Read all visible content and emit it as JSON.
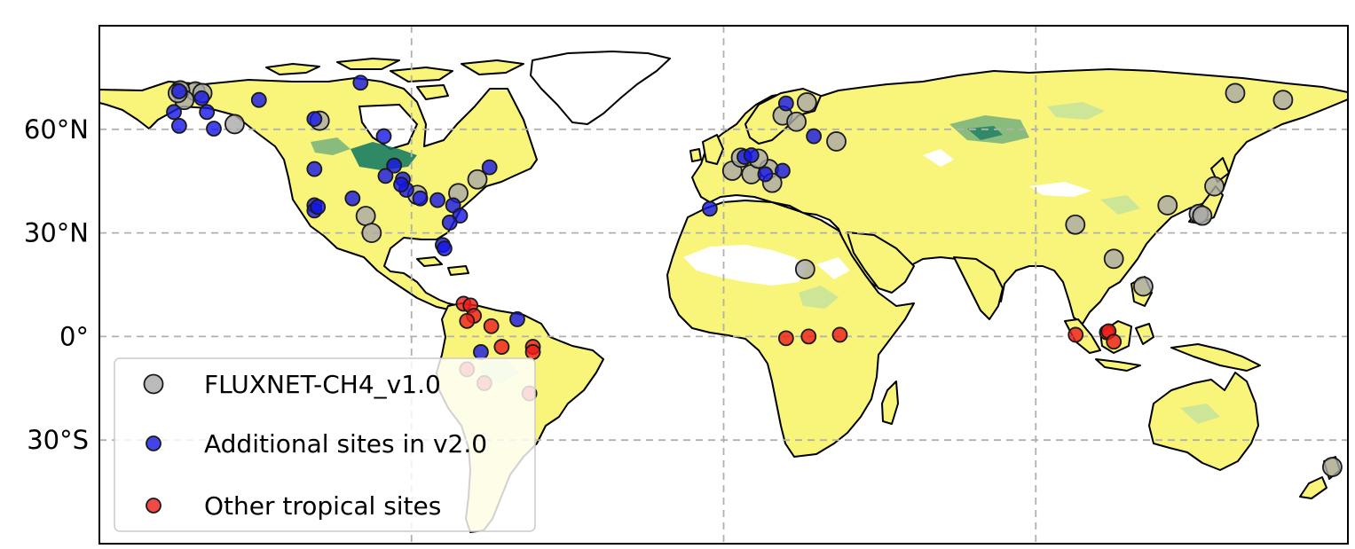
{
  "chart_data": {
    "type": "scatter",
    "title": "",
    "projection": "plate-carree",
    "xlim": [
      -180,
      180
    ],
    "ylim": [
      -60,
      90
    ],
    "grid": true,
    "grid_style": "dashed",
    "legend_placement": "lower-left",
    "y_ticks": [
      {
        "value": 60,
        "label": "60°N"
      },
      {
        "value": 30,
        "label": "30°N"
      },
      {
        "value": 0,
        "label": "0°"
      },
      {
        "value": -30,
        "label": "30°S"
      }
    ],
    "x_gridlines": [
      -90,
      0,
      90
    ],
    "background_field_colors": [
      "#f8f57a",
      "#c8e39a",
      "#5aa37f",
      "#0a7560"
    ],
    "series": [
      {
        "name": "FLUXNET-CH4_v1.0",
        "color": "#a9a9a9",
        "points": [
          {
            "lon": -152.3,
            "lat": 71.0
          },
          {
            "lon": -156.7,
            "lat": 71.3
          },
          {
            "lon": -155.5,
            "lat": 68.5
          },
          {
            "lon": -150.3,
            "lat": 70.5
          },
          {
            "lon": -157.4,
            "lat": 70.5
          },
          {
            "lon": -141.0,
            "lat": 61.5
          },
          {
            "lon": -116.5,
            "lat": 62.5
          },
          {
            "lon": -103.2,
            "lat": 34.9
          },
          {
            "lon": -88.3,
            "lat": 41.0
          },
          {
            "lon": -101.5,
            "lat": 30.0
          },
          {
            "lon": -76.5,
            "lat": 41.5
          },
          {
            "lon": -71.0,
            "lat": 45.5
          },
          {
            "lon": 2.5,
            "lat": 48.0
          },
          {
            "lon": 8.0,
            "lat": 47.0
          },
          {
            "lon": 13.0,
            "lat": 48.5
          },
          {
            "lon": 10.0,
            "lat": 51.5
          },
          {
            "lon": 5.0,
            "lat": 51.8
          },
          {
            "lon": 14.0,
            "lat": 44.5
          },
          {
            "lon": 17.0,
            "lat": 64.0
          },
          {
            "lon": 24.0,
            "lat": 67.8
          },
          {
            "lon": 21.0,
            "lat": 62.2
          },
          {
            "lon": 32.5,
            "lat": 56.5
          },
          {
            "lon": 23.5,
            "lat": 19.5
          },
          {
            "lon": 101.4,
            "lat": 32.4
          },
          {
            "lon": 112.5,
            "lat": 22.5
          },
          {
            "lon": 121.0,
            "lat": 14.5
          },
          {
            "lon": 128.0,
            "lat": 38.0
          },
          {
            "lon": 137.0,
            "lat": 35.5
          },
          {
            "lon": 141.5,
            "lat": 43.5
          },
          {
            "lon": 138.0,
            "lat": 35.0
          },
          {
            "lon": 147.5,
            "lat": 70.5
          },
          {
            "lon": 161.3,
            "lat": 68.5
          },
          {
            "lon": 175.5,
            "lat": -37.8
          }
        ]
      },
      {
        "name": "Additional sites in v2.0",
        "color": "#1515e6",
        "points": [
          {
            "lon": -157.0,
            "lat": 71.0
          },
          {
            "lon": -150.5,
            "lat": 69.0
          },
          {
            "lon": -149.0,
            "lat": 65.0
          },
          {
            "lon": -158.5,
            "lat": 65.0
          },
          {
            "lon": -157.0,
            "lat": 61.0
          },
          {
            "lon": -147.0,
            "lat": 60.2
          },
          {
            "lon": -134.0,
            "lat": 68.5
          },
          {
            "lon": -118.0,
            "lat": 63.0
          },
          {
            "lon": -104.7,
            "lat": 73.5
          },
          {
            "lon": -98.0,
            "lat": 58.0
          },
          {
            "lon": -118.0,
            "lat": 48.5
          },
          {
            "lon": -118.0,
            "lat": 38.0
          },
          {
            "lon": -118.0,
            "lat": 36.5
          },
          {
            "lon": -117.0,
            "lat": 37.5
          },
          {
            "lon": -95.0,
            "lat": 49.5
          },
          {
            "lon": -107.0,
            "lat": 40.0
          },
          {
            "lon": -97.5,
            "lat": 46.5
          },
          {
            "lon": -92.5,
            "lat": 45.5
          },
          {
            "lon": -91.5,
            "lat": 42.5
          },
          {
            "lon": -87.5,
            "lat": 40.0
          },
          {
            "lon": -82.5,
            "lat": 39.5
          },
          {
            "lon": -78.0,
            "lat": 38.0
          },
          {
            "lon": -76.0,
            "lat": 35.0
          },
          {
            "lon": -79.0,
            "lat": 33.0
          },
          {
            "lon": -81.0,
            "lat": 26.5
          },
          {
            "lon": -80.5,
            "lat": 25.5
          },
          {
            "lon": -67.5,
            "lat": 49.0
          },
          {
            "lon": -93.0,
            "lat": 44.0
          },
          {
            "lon": -59.5,
            "lat": 5.0
          },
          {
            "lon": -70.0,
            "lat": -4.5
          },
          {
            "lon": -4.0,
            "lat": 37.0
          },
          {
            "lon": 6.0,
            "lat": 52.0
          },
          {
            "lon": 8.0,
            "lat": 52.5
          },
          {
            "lon": 12.0,
            "lat": 47.0
          },
          {
            "lon": 17.0,
            "lat": 48.0
          },
          {
            "lon": 18.0,
            "lat": 67.5
          },
          {
            "lon": 26.0,
            "lat": 58.0
          }
        ]
      },
      {
        "name": "Other tropical sites",
        "color": "#ee1a1a",
        "points": [
          {
            "lon": -75.0,
            "lat": 9.5
          },
          {
            "lon": -73.0,
            "lat": 9.0
          },
          {
            "lon": -72.0,
            "lat": 6.0
          },
          {
            "lon": -74.0,
            "lat": 4.5
          },
          {
            "lon": -67.0,
            "lat": 3.0
          },
          {
            "lon": -64.0,
            "lat": -3.0
          },
          {
            "lon": -55.0,
            "lat": -3.0
          },
          {
            "lon": -55.0,
            "lat": -4.5
          },
          {
            "lon": -74.0,
            "lat": -9.5
          },
          {
            "lon": -69.0,
            "lat": -13.5
          },
          {
            "lon": -56.0,
            "lat": -16.5
          },
          {
            "lon": 18.0,
            "lat": -0.5
          },
          {
            "lon": 24.5,
            "lat": 0.0
          },
          {
            "lon": 33.5,
            "lat": 0.5
          },
          {
            "lon": 101.5,
            "lat": 0.5
          },
          {
            "lon": 110.5,
            "lat": 1.2
          },
          {
            "lon": 111.0,
            "lat": 1.5
          },
          {
            "lon": 112.5,
            "lat": -1.5
          }
        ]
      }
    ]
  }
}
